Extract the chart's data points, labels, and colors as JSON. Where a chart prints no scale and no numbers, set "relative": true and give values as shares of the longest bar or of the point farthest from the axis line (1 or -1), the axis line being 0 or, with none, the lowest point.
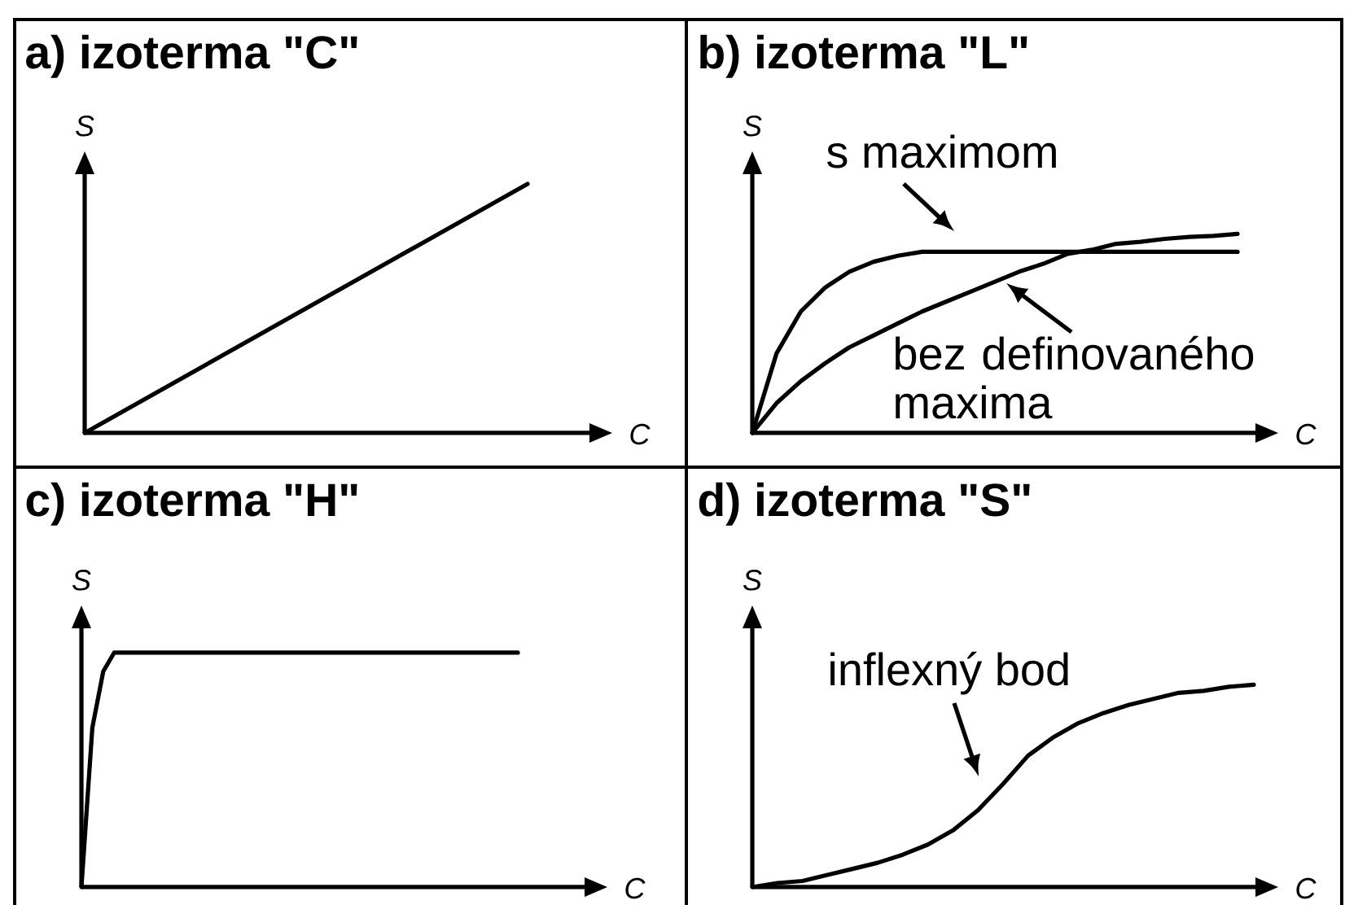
{
  "chart_data": [
    {
      "type": "line",
      "title": "a) izoterma \"C\"",
      "xlabel": "C",
      "ylabel": "S",
      "relative": true,
      "categories": [
        null,
        null,
        null,
        null,
        null
      ],
      "values": [
        0,
        0.25,
        0.5,
        0.75,
        1
      ],
      "color": "#000000"
    },
    {
      "type": "line",
      "title": "b) izoterma \"L\"",
      "xlabel": "C",
      "ylabel": "S",
      "relative": true,
      "categories": [
        null,
        null,
        null,
        null,
        null,
        null,
        null,
        null,
        null,
        null,
        null,
        null,
        null,
        null,
        null,
        null,
        null,
        null,
        null,
        null,
        null
      ],
      "series": [
        {
          "color": "#000000",
          "values": [
            0,
            0.4,
            0.61,
            0.73,
            0.81,
            0.86,
            0.89,
            0.91,
            0.91,
            0.91,
            0.91,
            0.91,
            0.91,
            0.91,
            0.91,
            0.91,
            0.91,
            0.91,
            0.91,
            0.91,
            0.91
          ]
        },
        {
          "color": "#000000",
          "values": [
            0,
            0.15,
            0.26,
            0.35,
            0.43,
            0.49,
            0.55,
            0.61,
            0.66,
            0.71,
            0.76,
            0.81,
            0.85,
            0.9,
            0.92,
            0.95,
            0.96,
            0.975,
            0.985,
            0.99,
            1
          ]
        }
      ],
      "annotations": [
        "s maximom",
        "bez definovaného maxima"
      ]
    },
    {
      "type": "line",
      "title": "c) izoterma \"H\"",
      "xlabel": "C",
      "ylabel": "S",
      "relative": true,
      "categories": [
        null,
        null,
        null,
        null,
        null,
        null,
        null,
        null,
        null,
        null,
        null,
        null,
        null,
        null,
        null,
        null,
        null,
        null,
        null,
        null,
        null,
        null,
        null,
        null,
        null,
        null,
        null,
        null,
        null,
        null,
        null,
        null,
        null,
        null,
        null,
        null,
        null,
        null,
        null,
        null,
        null
      ],
      "values": [
        0,
        0.68,
        0.92,
        1,
        1,
        1,
        1,
        1,
        1,
        1,
        1,
        1,
        1,
        1,
        1,
        1,
        1,
        1,
        1,
        1,
        1,
        1,
        1,
        1,
        1,
        1,
        1,
        1,
        1,
        1,
        1,
        1,
        1,
        1,
        1,
        1,
        1,
        1,
        1,
        1,
        1
      ],
      "color": "#000000"
    },
    {
      "type": "line",
      "title": "d) izoterma \"S\"",
      "xlabel": "C",
      "ylabel": "S",
      "relative": true,
      "categories": [
        null,
        null,
        null,
        null,
        null,
        null,
        null,
        null,
        null,
        null,
        null,
        null,
        null,
        null,
        null,
        null,
        null,
        null,
        null,
        null,
        null
      ],
      "values": [
        0,
        0.02,
        0.03,
        0.06,
        0.09,
        0.12,
        0.16,
        0.21,
        0.28,
        0.38,
        0.51,
        0.65,
        0.74,
        0.81,
        0.86,
        0.9,
        0.93,
        0.96,
        0.97,
        0.99,
        1
      ],
      "color": "#000000",
      "annotations": [
        "inflexný bod"
      ]
    }
  ]
}
